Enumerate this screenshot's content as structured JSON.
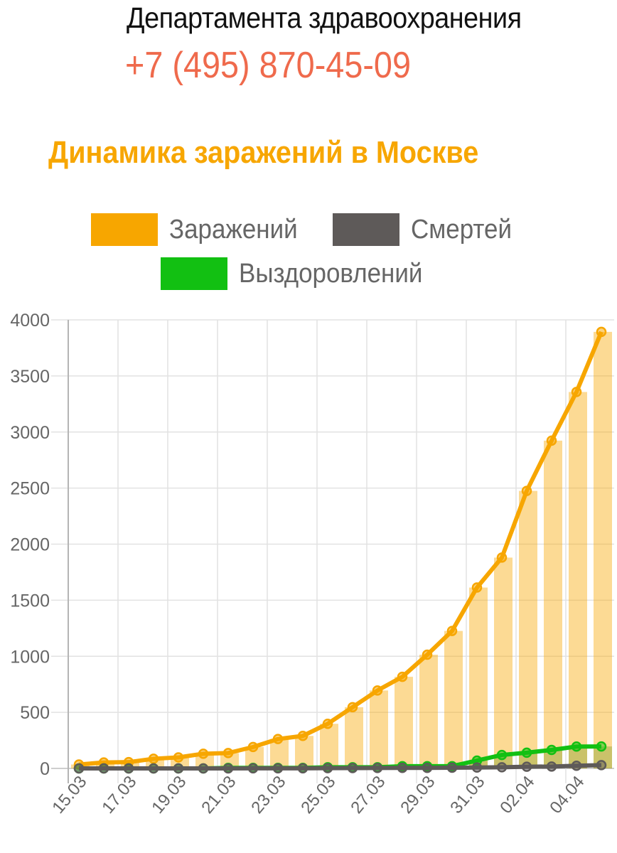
{
  "header": {
    "department": "Департамента здравоохранения",
    "phone": "+7 (495) 870-45-09"
  },
  "chart_title": "Динамика заражений в Москве",
  "legend": [
    {
      "label": "Заражений",
      "color": "#f7a600"
    },
    {
      "label": "Смертей",
      "color": "#5e5a59"
    },
    {
      "label": "Выздоровлений",
      "color": "#12c012"
    }
  ],
  "chart_data": {
    "type": "line",
    "title": "Динамика заражений в Москве",
    "xlabel": "",
    "ylabel": "",
    "ylim": [
      0,
      4000
    ],
    "yticks": [
      0,
      500,
      1000,
      1500,
      2000,
      2500,
      3000,
      3500,
      4000
    ],
    "grid": true,
    "legend_position": "top",
    "categories": [
      "15.03",
      "16.03",
      "17.03",
      "18.03",
      "19.03",
      "20.03",
      "21.03",
      "22.03",
      "23.03",
      "24.03",
      "25.03",
      "26.03",
      "27.03",
      "28.03",
      "29.03",
      "30.03",
      "31.03",
      "01.04",
      "02.04",
      "03.04",
      "04.04",
      "05.04"
    ],
    "xtick_labels": [
      "15.03",
      "17.03",
      "19.03",
      "21.03",
      "23.03",
      "25.03",
      "27.03",
      "29.03",
      "31.03",
      "02.04",
      "04.04"
    ],
    "series": [
      {
        "name": "Заражений",
        "color": "#f7a600",
        "style": "line+bar",
        "values": [
          35,
          53,
          56,
          86,
          98,
          131,
          137,
          191,
          262,
          290,
          398,
          546,
          695,
          817,
          1014,
          1226,
          1613,
          1880,
          2475,
          2923,
          3357,
          3893
        ]
      },
      {
        "name": "Смертей",
        "color": "#5e5a59",
        "style": "line",
        "values": [
          0,
          0,
          0,
          0,
          0,
          0,
          0,
          1,
          1,
          1,
          2,
          3,
          4,
          5,
          5,
          6,
          8,
          10,
          15,
          17,
          24,
          29
        ]
      },
      {
        "name": "Выздоровлений",
        "color": "#12c012",
        "style": "line+bar",
        "values": [
          0,
          0,
          0,
          0,
          0,
          0,
          5,
          5,
          5,
          5,
          10,
          10,
          10,
          20,
          20,
          20,
          70,
          120,
          140,
          165,
          195,
          196
        ]
      }
    ]
  }
}
